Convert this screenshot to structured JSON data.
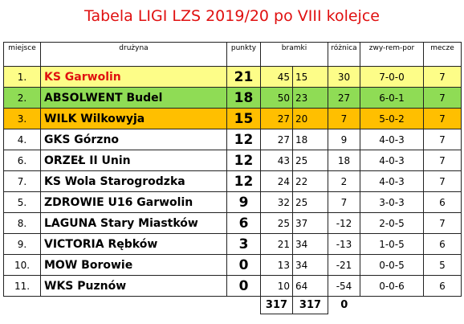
{
  "title": "Tabela LIGI LZS 2019/20 po VIII kolejce",
  "headers": {
    "position": "miejsce",
    "team": "drużyna",
    "points": "punkty",
    "goals": "bramki",
    "difference": "różnica",
    "record": "zwy-rem-por",
    "matches": "mecze"
  },
  "rows": [
    {
      "pos": "1.",
      "team": "KS Garwolin",
      "pts": "21",
      "gf": "45",
      "ga": "15",
      "diff": "30",
      "rec": "7-0-0",
      "mat": "7",
      "highlight": "#fdfd88"
    },
    {
      "pos": "2.",
      "team": "ABSOLWENT Budel",
      "pts": "18",
      "gf": "50",
      "ga": "23",
      "diff": "27",
      "rec": "6-0-1",
      "mat": "7",
      "highlight": "#8fdc55"
    },
    {
      "pos": "3.",
      "team": "WILK Wilkowyja",
      "pts": "15",
      "gf": "27",
      "ga": "20",
      "diff": "7",
      "rec": "5-0-2",
      "mat": "7",
      "highlight": "#ffbf00"
    },
    {
      "pos": "4.",
      "team": "GKS Górzno",
      "pts": "12",
      "gf": "27",
      "ga": "18",
      "diff": "9",
      "rec": "4-0-3",
      "mat": "7"
    },
    {
      "pos": "6.",
      "team": "ORZEŁ II Unin",
      "pts": "12",
      "gf": "43",
      "ga": "25",
      "diff": "18",
      "rec": "4-0-3",
      "mat": "7"
    },
    {
      "pos": "7.",
      "team": "KS Wola Starogrodzka",
      "pts": "12",
      "gf": "24",
      "ga": "22",
      "diff": "2",
      "rec": "4-0-3",
      "mat": "7"
    },
    {
      "pos": "5.",
      "team": "ZDROWIE U16 Garwolin",
      "pts": "9",
      "gf": "32",
      "ga": "25",
      "diff": "7",
      "rec": "3-0-3",
      "mat": "6"
    },
    {
      "pos": "8.",
      "team": "LAGUNA Stary Miastków",
      "pts": "6",
      "gf": "25",
      "ga": "37",
      "diff": "-12",
      "rec": "2-0-5",
      "mat": "7"
    },
    {
      "pos": "9.",
      "team": "VICTORIA Rębków",
      "pts": "3",
      "gf": "21",
      "ga": "34",
      "diff": "-13",
      "rec": "1-0-5",
      "mat": "6"
    },
    {
      "pos": "10.",
      "team": "MOW Borowie",
      "pts": "0",
      "gf": "13",
      "ga": "34",
      "diff": "-21",
      "rec": "0-0-5",
      "mat": "5"
    },
    {
      "pos": "11.",
      "team": "WKS Puznów",
      "pts": "0",
      "gf": "10",
      "ga": "64",
      "diff": "-54",
      "rec": "0-0-6",
      "mat": "6"
    }
  ],
  "totals": {
    "gf": "317",
    "ga": "317",
    "diff": "0"
  }
}
